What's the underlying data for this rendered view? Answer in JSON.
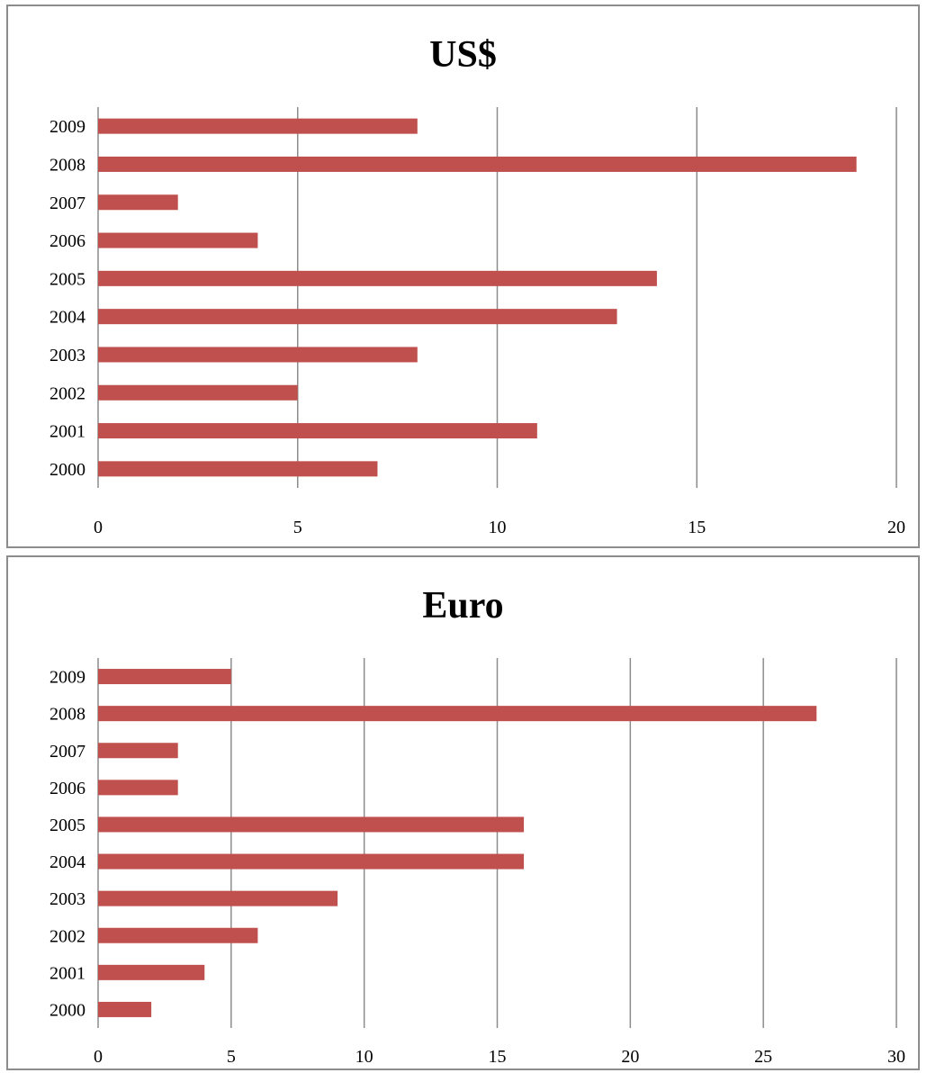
{
  "chart_data": [
    {
      "type": "bar",
      "orientation": "horizontal",
      "title": "US$",
      "categories": [
        "2000",
        "2001",
        "2002",
        "2003",
        "2004",
        "2005",
        "2006",
        "2007",
        "2008",
        "2009"
      ],
      "values": [
        7,
        11,
        5,
        8,
        13,
        14,
        4,
        2,
        19,
        8
      ],
      "xlim": [
        0,
        20
      ],
      "xticks": [
        "0",
        "5",
        "10",
        "15",
        "20"
      ],
      "grid": true,
      "bar_color": "#c0504d"
    },
    {
      "type": "bar",
      "orientation": "horizontal",
      "title": "Euro",
      "categories": [
        "2000",
        "2001",
        "2002",
        "2003",
        "2004",
        "2005",
        "2006",
        "2007",
        "2008",
        "2009"
      ],
      "values": [
        2,
        4,
        6,
        9,
        16,
        16,
        3,
        3,
        27,
        5
      ],
      "xlim": [
        0,
        30
      ],
      "xticks": [
        "0",
        "5",
        "10",
        "15",
        "20",
        "25",
        "30"
      ],
      "grid": true,
      "bar_color": "#c0504d"
    }
  ]
}
